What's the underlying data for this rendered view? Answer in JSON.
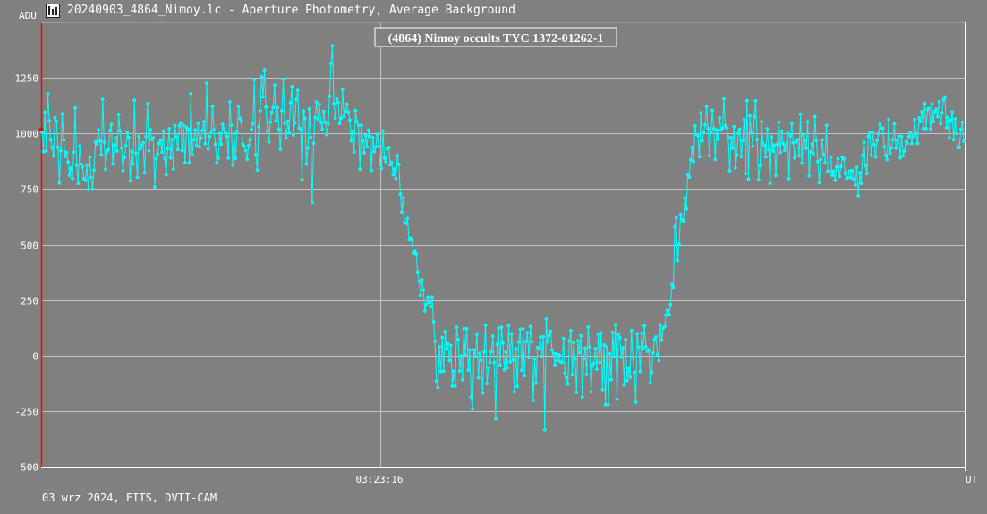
{
  "window": {
    "title": "20240903_4864_Nimoy.lc - Aperture Photometry, Average Background",
    "icon": "chart-icon"
  },
  "footer": {
    "info": "03 wrz 2024, FITS, DVTI-CAM"
  },
  "colors": {
    "background": "#808080",
    "series": "#00ffff",
    "grid": "#c0c0c0",
    "marker": "#ff0000"
  },
  "chart_data": {
    "type": "line",
    "title": "(4864) Nimoy occults TYC 1372-01262-1",
    "ylabel": "ADU",
    "xlabel": "UT",
    "ylim": [
      -500,
      1500
    ],
    "y_ticks": [
      1250,
      1000,
      750,
      500,
      250,
      0,
      -250,
      -500
    ],
    "x_tick_labels": [
      "03:23:16"
    ],
    "grid": true,
    "markers": true,
    "series": [
      {
        "values": [
          1005,
          918,
          1096,
          922,
          1178,
          1057,
          972,
          937,
          899,
          1071,
          1055,
          938,
          777,
          922,
          1088,
          970,
          896,
          914,
          872,
          810,
          845,
          797,
          916,
          1115,
          856,
          775,
          943,
          862,
          849,
          796,
          789,
          857,
          748,
          893,
          802,
          749,
          835,
          962,
          952,
          1017,
          967,
          904,
          1154,
          961,
          839,
          919,
          927,
          1013,
          1041,
          862,
          948,
          981,
          920,
          1086,
          1011,
          934,
          833,
          891,
          945,
          1004,
          983,
          786,
          919,
          862,
          1149,
          911,
          803,
          987,
          929,
          946,
          958,
          823,
          987,
          1133,
          922,
          1017,
          973,
          980,
          759,
          886,
          907,
          956,
          968,
          915,
          1011,
          887,
          813,
          931,
          1021,
          889,
          973,
          840,
          1035,
          985,
          927,
          1033,
          1047,
          922,
          1037,
          867,
          1027,
          1018,
          869,
          1179,
          904,
          972,
          1016,
          945,
          1045,
          939,
          979,
          1013,
          1053,
          953,
          1226,
          930,
          986,
          1003,
          1122,
          1017,
          951,
          867,
          889,
          1000,
          952,
          1041,
          1023,
          1005,
          987,
          889,
          1142,
          1037,
          856,
          999,
          888,
          1010,
          1122,
          1067,
          1053,
          951,
          942,
          923,
          883,
          946,
          972,
          1018,
          1044,
          1242,
          904,
          835,
          1030,
          1101,
          1255,
          1164,
          1286,
          1118,
          1012,
          962,
          1050,
          1095,
          1117,
          1218,
          1056,
          1116,
          1019,
          928,
          1102,
          1244,
          1045,
          979,
          1055,
          1002,
          1139,
          1211,
          992,
          1047,
          1153,
          1193,
          1024,
          1020,
          792,
          1100,
          1067,
          863,
          935,
          1110,
          983,
          689,
          955,
          1072,
          1141,
          1064,
          1130,
          1050,
          1018,
          1099,
          1051,
          994,
          1042,
          1167,
          1315,
          1395,
          1133,
          1069,
          1155,
          1140,
          1045,
          1068,
          1198,
          1077,
          1101,
          1131,
          1096,
          1060,
          967,
          1009,
          916,
          1103,
          1052,
          1036,
          839,
          1037,
          967,
          913,
          991,
          940,
          1015,
          987,
          834,
          980,
          918,
          939,
          997,
          941,
          861,
          843,
          1011,
          889,
          873,
          930,
          936,
          859,
          870,
          814,
          840,
          797,
          899,
          860,
          726,
          646,
          711,
          598,
          595,
          617,
          521,
          528,
          520,
          461,
          469,
          458,
          377,
          333,
          271,
          341,
          295,
          200,
          230,
          263,
          239,
          221,
          263,
          152,
          64,
          -115,
          -144,
          40,
          -72,
          81,
          -71,
          108,
          29,
          52,
          -23,
          45,
          -138,
          -70,
          -137,
          127,
          72,
          -70,
          -2,
          -108,
          120,
          4,
          121,
          -66,
          26,
          -187,
          -240,
          26,
          -6,
          95,
          -101,
          10,
          -22,
          -168,
          16,
          137,
          -127,
          -54,
          -31,
          16,
          87,
          -31,
          -285,
          51,
          123,
          -42,
          128,
          56,
          -65,
          15,
          -55,
          135,
          -29,
          98,
          -19,
          -163,
          32,
          -139,
          61,
          118,
          -66,
          120,
          -91,
          62,
          103,
          -10,
          130,
          63,
          -202,
          -15,
          -124,
          37,
          31,
          83,
          -4,
          85,
          -334,
          164,
          61,
          90,
          109,
          25,
          9,
          -42,
          8,
          -23,
          3,
          -29,
          -31,
          77,
          -79,
          -99,
          -129,
          67,
          113,
          -86,
          58,
          -15,
          -166,
          67,
          13,
          89,
          -186,
          -15,
          33,
          -85,
          128,
          39,
          -163,
          -47,
          -35,
          31,
          -61,
          96,
          -31,
          102,
          -153,
          48,
          -221,
          39,
          -220,
          8,
          -108,
          104,
          -6,
          139,
          -197,
          96,
          80,
          -9,
          35,
          -133,
          72,
          -112,
          -55,
          -97,
          112,
          -7,
          -76,
          -210,
          98,
          39,
          -71,
          100,
          31,
          133,
          40,
          19,
          26,
          -123,
          -75,
          12,
          73,
          84,
          6,
          -23,
          138,
          69,
          123,
          130,
          183,
          204,
          183,
          229,
          319,
          307,
          580,
          620,
          428,
          502,
          636,
          612,
          605,
          708,
          660,
          815,
          803,
          881,
          937,
          873,
          1033,
          995,
          991,
          895,
          1093,
          967,
          1005,
          1039,
          1121,
          1023,
          900,
          1004,
          1103,
          1022,
          883,
          1016,
          973,
          1070,
          1015,
          1023,
          1156,
          1034,
          1025,
          985,
          832,
          981,
          934,
          1030,
          845,
          903,
          1001,
          1018,
          896,
          968,
          1063,
          819,
          1147,
          794,
          1079,
          1007,
          941,
          1075,
          1146,
          973,
          792,
          856,
          1053,
          956,
          946,
          894,
          1021,
          927,
          775,
          984,
          920,
          948,
          811,
          951,
          1050,
          915,
          1010,
          955,
          923,
          945,
          1000,
          796,
          989,
          1045,
          957,
          890,
          962,
          973,
          900,
          1087,
          866,
          990,
          970,
          933,
          1052,
          809,
          917,
          952,
          908,
          1075,
          969,
          874,
          779,
          883,
          971,
          906,
          868,
          1036,
          830,
          829,
          894,
          811,
          832,
          789,
          849,
          886,
          807,
          851,
          892,
          886,
          821,
          797,
          802,
          831,
          801,
          833,
          792,
          768,
          847,
          720,
          824,
          775,
          901,
          960,
          855,
          819,
          987,
          1004,
          901,
          1002,
          950,
          895,
          968,
          999,
          1041,
          1023,
          1024,
          940,
          901,
          882,
          1063,
          912,
          935,
          972,
          1043,
          933,
          970,
          987,
          890,
          986,
          900,
          921,
          963,
          955,
          986,
          1005,
          954,
          988,
          1063,
          1000,
          956,
          1070,
          1053,
          1098,
          1023,
          1135,
          1021,
          1109,
          1113,
          1020,
          1132,
          1053,
          1098,
          1109,
          1075,
          1142,
          1044,
          1093,
          1152,
          1163,
          1025,
          1072,
          981,
          1060,
          1097,
          972,
          1065,
          1000,
          935,
          937,
          1018,
          1051,
          965
        ]
      }
    ]
  }
}
